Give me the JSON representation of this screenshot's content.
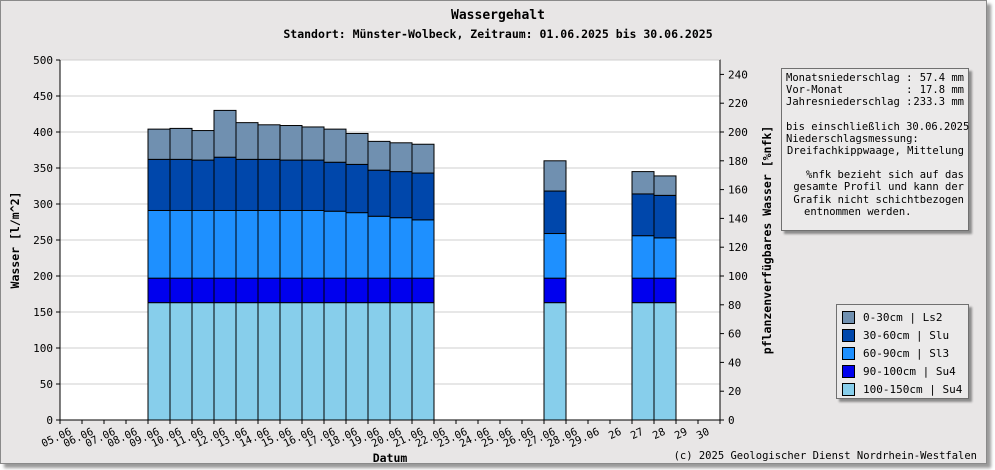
{
  "chart_data": {
    "type": "bar",
    "stacked": true,
    "title": "Wassergehalt",
    "subtitle": "Standort: Münster-Wolbeck, Zeitraum: 01.06.2025 bis 30.06.2025",
    "xlabel": "Datum",
    "ylabel": "Wasser [l/m^2]",
    "ylabel_right": "pflanzenverfügbares Wasser [%nfk]",
    "ylim": [
      0,
      500
    ],
    "yticks": [
      0,
      50,
      100,
      150,
      200,
      250,
      300,
      350,
      400,
      450,
      500
    ],
    "ylim_right": [
      0,
      250
    ],
    "yticks_right": [
      0,
      20,
      40,
      60,
      80,
      100,
      120,
      140,
      160,
      180,
      200,
      220,
      240
    ],
    "grid": true,
    "legend_position": "bottom-right",
    "categories": [
      "05.06",
      "06.06",
      "07.06",
      "08.06",
      "09.06",
      "10.06",
      "11.06",
      "12.06",
      "13.06",
      "14.06",
      "15.06",
      "16.06",
      "17.06",
      "18.06",
      "19.06",
      "20.06",
      "21.06",
      "22.06",
      "23.06",
      "24.06",
      "25.06",
      "26.06",
      "27.06",
      "28.06",
      "29.06",
      "26",
      "27",
      "28",
      "29",
      "30"
    ],
    "series": [
      {
        "name": "100-150cm | Su4",
        "color": "#87ceeb",
        "values": [
          null,
          null,
          null,
          null,
          163,
          163,
          163,
          163,
          163,
          163,
          163,
          163,
          163,
          163,
          163,
          163,
          163,
          null,
          null,
          null,
          null,
          null,
          163,
          null,
          null,
          null,
          163,
          163,
          null,
          null
        ]
      },
      {
        "name": "90-100cm | Su4",
        "color": "#0000ee",
        "values": [
          null,
          null,
          null,
          null,
          34,
          34,
          34,
          34,
          34,
          34,
          34,
          34,
          34,
          34,
          34,
          34,
          34,
          null,
          null,
          null,
          null,
          null,
          34,
          null,
          null,
          null,
          34,
          34,
          null,
          null
        ]
      },
      {
        "name": "60-90cm | Sl3",
        "color": "#1e90ff",
        "values": [
          null,
          null,
          null,
          null,
          94,
          94,
          94,
          94,
          94,
          94,
          94,
          94,
          93,
          91,
          86,
          84,
          81,
          null,
          null,
          null,
          null,
          null,
          62,
          null,
          null,
          null,
          59,
          56,
          null,
          null
        ]
      },
      {
        "name": "30-60cm | Slu",
        "color": "#0047ab",
        "values": [
          null,
          null,
          null,
          null,
          71,
          71,
          70,
          74,
          71,
          71,
          70,
          70,
          68,
          67,
          64,
          64,
          65,
          null,
          null,
          null,
          null,
          null,
          59,
          null,
          null,
          null,
          58,
          59,
          null,
          null
        ]
      },
      {
        "name": "0-30cm | Ls2",
        "color": "#7090b0",
        "values": [
          null,
          null,
          null,
          null,
          42,
          43,
          41,
          65,
          51,
          48,
          48,
          46,
          46,
          43,
          40,
          40,
          40,
          null,
          null,
          null,
          null,
          null,
          42,
          null,
          null,
          null,
          31,
          27,
          null,
          null
        ]
      }
    ]
  },
  "info": {
    "monat_label": "Monatsniederschlag :",
    "monat_value": "57.4 mm",
    "vormonat_label": "Vor-Monat          :",
    "vormonat_value": "17.8 mm",
    "jahr_label": "Jahresniederschlag :",
    "jahr_value": "233.3 mm",
    "bis_line": "bis einschließlich 30.06.2025",
    "mess_line": "Niederschlagsmessung:",
    "mess_value": "Dreifachkippwaage, Mittelung",
    "note_1": "%nfk bezieht sich auf das",
    "note_2": "gesamte Profil und kann der",
    "note_3": "Grafik nicht schichtbezogen",
    "note_4": "entnommen werden."
  },
  "copyright": "(c) 2025 Geologischer Dienst Nordrhein-Westfalen"
}
